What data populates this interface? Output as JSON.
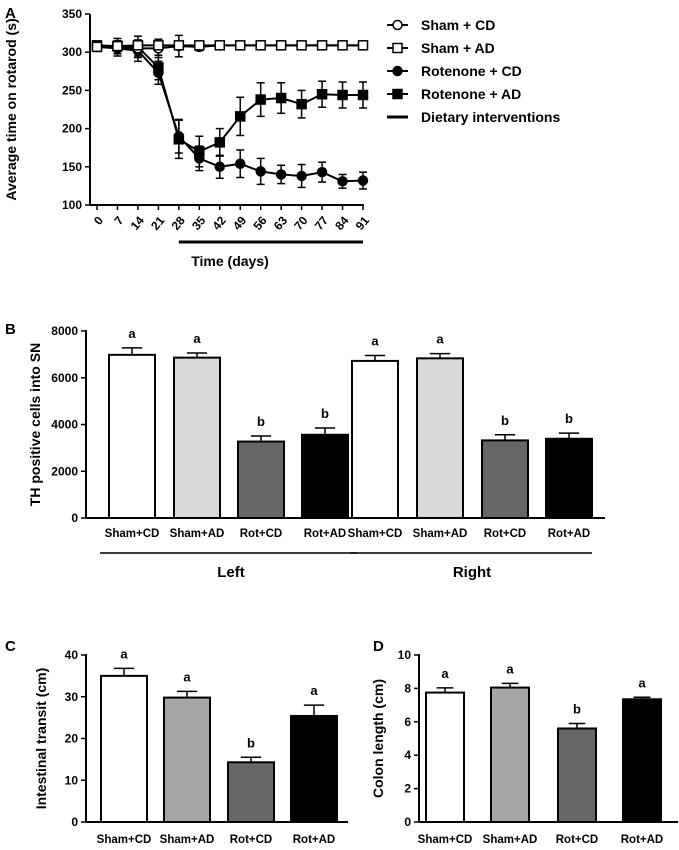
{
  "chart_data": [
    {
      "panel": "A",
      "type": "line",
      "xlabel": "Time (days)",
      "ylabel": "Average time on rotarod  (s)",
      "ylim": [
        100,
        350
      ],
      "yticks": [
        100,
        150,
        200,
        250,
        300,
        350
      ],
      "x": [
        0,
        7,
        14,
        21,
        28,
        35,
        42,
        49,
        56,
        63,
        70,
        77,
        84,
        91
      ],
      "xtick_labels": [
        "0",
        "7",
        "14",
        "21",
        "28",
        "35",
        "42",
        "49",
        "56",
        "63",
        "70",
        "77",
        "84",
        "91"
      ],
      "series": [
        {
          "name": "Sham + CD",
          "marker": "circle-open",
          "values": [
            308,
            306,
            305,
            305,
            308,
            307,
            309,
            309,
            309,
            309,
            309,
            309,
            309,
            309
          ],
          "errors": [
            5,
            8,
            10,
            12,
            14,
            5,
            2,
            2,
            2,
            2,
            2,
            2,
            2,
            2
          ]
        },
        {
          "name": "Sham + AD",
          "marker": "square-open",
          "values": [
            307,
            308,
            309,
            309,
            309,
            309,
            309,
            309,
            309,
            309,
            309,
            309,
            309,
            309
          ],
          "errors": [
            4,
            6,
            5,
            4,
            3,
            2,
            2,
            2,
            2,
            2,
            2,
            2,
            2,
            2
          ]
        },
        {
          "name": "Rotenone + CD",
          "marker": "circle-filled",
          "values": [
            307,
            305,
            302,
            273,
            190,
            161,
            150,
            154,
            144,
            140,
            138,
            143,
            131,
            132
          ],
          "errors": [
            6,
            10,
            14,
            15,
            22,
            16,
            15,
            18,
            17,
            12,
            15,
            13,
            9,
            11
          ]
        },
        {
          "name": "Rotenone + AD",
          "marker": "square-filled",
          "values": [
            309,
            308,
            307,
            280,
            186,
            170,
            182,
            216,
            238,
            240,
            232,
            245,
            244,
            244
          ],
          "errors": [
            5,
            10,
            14,
            16,
            25,
            20,
            18,
            25,
            22,
            20,
            18,
            17,
            17,
            17
          ]
        }
      ],
      "legend_extra": "Dietary interventions",
      "intervention_range": [
        28,
        91
      ]
    },
    {
      "panel": "B",
      "type": "bar",
      "ylabel": "TH positive cells into SN",
      "ylim": [
        0,
        8000
      ],
      "yticks": [
        0,
        2000,
        4000,
        6000,
        8000
      ],
      "categories": [
        "Sham+CD",
        "Sham+AD",
        "Rot+CD",
        "Rot+AD",
        "Sham+CD",
        "Sham+AD",
        "Rot+CD",
        "Rot+AD"
      ],
      "groups": [
        "Left",
        "Right"
      ],
      "values": [
        6980,
        6860,
        3270,
        3560,
        6720,
        6830,
        3320,
        3390
      ],
      "errors": [
        300,
        200,
        240,
        290,
        230,
        200,
        240,
        240
      ],
      "significance": [
        "a",
        "a",
        "b",
        "b",
        "a",
        "a",
        "b",
        "b"
      ],
      "colors": [
        "#ffffff",
        "#d9d9d9",
        "#666666",
        "#000000",
        "#ffffff",
        "#d9d9d9",
        "#666666",
        "#000000"
      ]
    },
    {
      "panel": "C",
      "type": "bar",
      "ylabel": "Intestinal transit (cm)",
      "ylim": [
        0,
        40
      ],
      "yticks": [
        0,
        10,
        20,
        30,
        40
      ],
      "categories": [
        "Sham+CD",
        "Sham+AD",
        "Rot+CD",
        "Rot+AD"
      ],
      "values": [
        35.0,
        29.8,
        14.3,
        25.4
      ],
      "errors": [
        1.8,
        1.5,
        1.2,
        2.6
      ],
      "significance": [
        "a",
        "a",
        "b",
        "a"
      ],
      "colors": [
        "#ffffff",
        "#a6a6a6",
        "#666666",
        "#000000"
      ]
    },
    {
      "panel": "D",
      "type": "bar",
      "ylabel": "Colon length (cm)",
      "ylim": [
        0,
        10
      ],
      "yticks": [
        0,
        2,
        4,
        6,
        8,
        10
      ],
      "categories": [
        "Sham+CD",
        "Sham+AD",
        "Rot+CD",
        "Rot+AD"
      ],
      "values": [
        7.75,
        8.05,
        5.6,
        7.35
      ],
      "errors": [
        0.28,
        0.25,
        0.3,
        0.12
      ],
      "significance": [
        "a",
        "a",
        "b",
        "a"
      ],
      "colors": [
        "#ffffff",
        "#a6a6a6",
        "#666666",
        "#000000"
      ]
    }
  ]
}
